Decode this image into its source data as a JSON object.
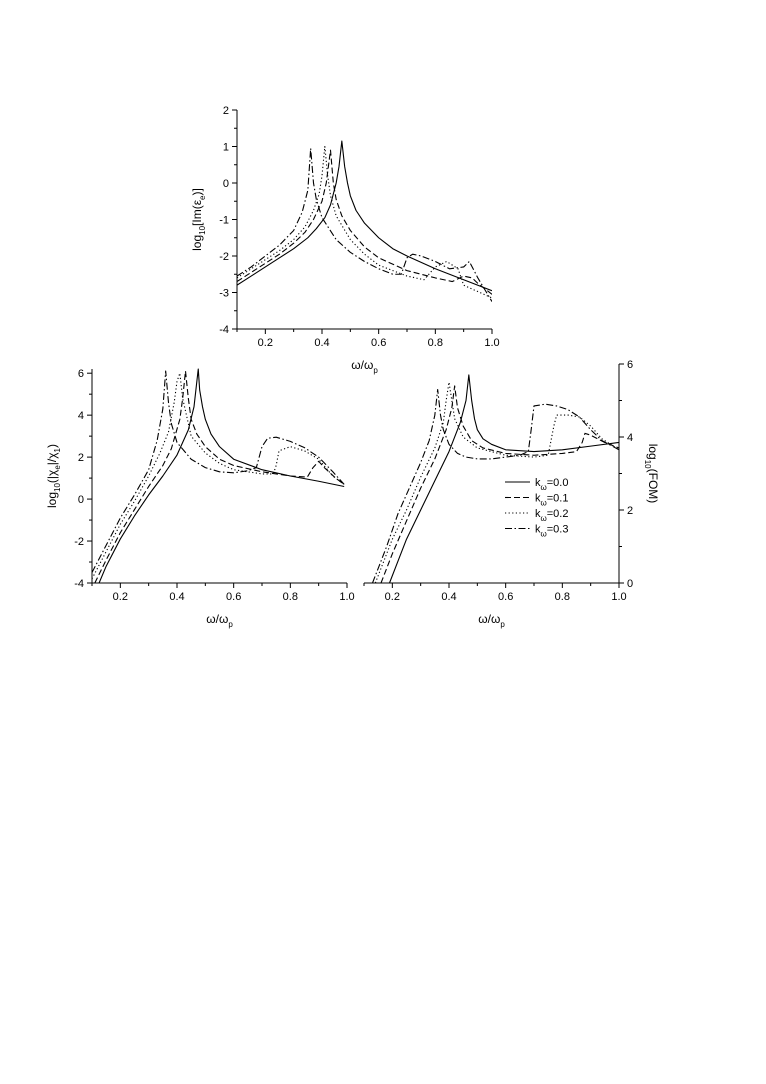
{
  "chart_data": [
    {
      "type": "line",
      "id": "top",
      "xlabel": "ω/ω",
      "xlabel_sub": "p",
      "ylabel_parts": [
        {
          "t": "log"
        },
        {
          "t": "10",
          "sub": true
        },
        {
          "t": "[Im(ε"
        },
        {
          "t": "e",
          "sub": true
        },
        {
          "t": ")]"
        }
      ],
      "xlim": [
        0.1,
        1.0
      ],
      "ylim": [
        -4,
        2
      ],
      "xticks": [
        0.2,
        0.4,
        0.6,
        0.8,
        1.0
      ],
      "xtick_labels": [
        "0.2",
        "0.4",
        "0.6",
        "0.8",
        "1.0"
      ],
      "yticks": [
        -4,
        -3,
        -2,
        -1,
        0,
        1,
        2
      ],
      "ytick_labels": [
        "-4",
        "-3",
        "-2",
        "-1",
        "0",
        "1",
        "2"
      ],
      "y_axis_side": "left",
      "series": [
        {
          "style": "solid",
          "x": [
            0.1,
            0.15,
            0.2,
            0.25,
            0.3,
            0.35,
            0.38,
            0.41,
            0.43,
            0.45,
            0.46,
            0.47,
            0.48,
            0.49,
            0.5,
            0.52,
            0.55,
            0.6,
            0.65,
            0.7,
            0.8,
            0.9,
            1.0
          ],
          "y": [
            -2.8,
            -2.55,
            -2.3,
            -2.05,
            -1.8,
            -1.5,
            -1.25,
            -0.95,
            -0.6,
            0.0,
            0.45,
            1.15,
            0.45,
            0.0,
            -0.35,
            -0.75,
            -1.1,
            -1.5,
            -1.8,
            -2.0,
            -2.35,
            -2.65,
            -2.95
          ]
        },
        {
          "style": "dash",
          "x": [
            0.1,
            0.15,
            0.2,
            0.25,
            0.3,
            0.34,
            0.37,
            0.4,
            0.415,
            0.43,
            0.44,
            0.45,
            0.47,
            0.5,
            0.55,
            0.6,
            0.7,
            0.8,
            0.86,
            0.9,
            0.93,
            0.95,
            1.0
          ],
          "y": [
            -2.7,
            -2.45,
            -2.2,
            -1.95,
            -1.65,
            -1.35,
            -1.0,
            -0.5,
            0.0,
            0.9,
            0.0,
            -0.45,
            -0.9,
            -1.3,
            -1.75,
            -2.05,
            -2.4,
            -2.6,
            -2.7,
            -2.55,
            -2.6,
            -2.75,
            -3.05
          ]
        },
        {
          "style": "dot",
          "x": [
            0.1,
            0.15,
            0.2,
            0.25,
            0.3,
            0.34,
            0.37,
            0.39,
            0.4,
            0.41,
            0.42,
            0.43,
            0.45,
            0.5,
            0.55,
            0.6,
            0.7,
            0.76,
            0.8,
            0.84,
            0.88,
            0.9,
            1.0
          ],
          "y": [
            -2.6,
            -2.35,
            -2.1,
            -1.85,
            -1.55,
            -1.2,
            -0.75,
            -0.3,
            0.2,
            1.0,
            0.2,
            -0.35,
            -0.9,
            -1.55,
            -1.95,
            -2.25,
            -2.55,
            -2.65,
            -2.3,
            -2.15,
            -2.35,
            -2.8,
            -3.15
          ]
        },
        {
          "style": "dashdot",
          "x": [
            0.1,
            0.15,
            0.2,
            0.25,
            0.3,
            0.33,
            0.35,
            0.36,
            0.37,
            0.38,
            0.4,
            0.45,
            0.5,
            0.55,
            0.6,
            0.65,
            0.68,
            0.7,
            0.72,
            0.75,
            0.8,
            0.85,
            0.9,
            0.92,
            0.95,
            1.0
          ],
          "y": [
            -2.55,
            -2.3,
            -2.0,
            -1.7,
            -1.3,
            -0.8,
            -0.2,
            0.95,
            0.0,
            -0.45,
            -0.95,
            -1.55,
            -1.9,
            -2.15,
            -2.35,
            -2.5,
            -2.5,
            -2.05,
            -1.95,
            -2.0,
            -2.15,
            -2.35,
            -2.3,
            -2.15,
            -2.6,
            -3.25
          ]
        }
      ]
    },
    {
      "type": "line",
      "id": "bottom-left",
      "xlabel": "ω/ω",
      "xlabel_sub": "p",
      "ylabel_parts": [
        {
          "t": "log"
        },
        {
          "t": "10",
          "sub": true
        },
        {
          "t": "(|χ"
        },
        {
          "t": "e",
          "sub": true
        },
        {
          "t": "|/χ"
        },
        {
          "t": "1",
          "sub": true
        },
        {
          "t": ")"
        }
      ],
      "xlim": [
        0.1,
        1.0
      ],
      "ylim": [
        -4,
        6.2
      ],
      "xticks": [
        0.2,
        0.4,
        0.6,
        0.8,
        1.0
      ],
      "xtick_labels": [
        "0.2",
        "0.4",
        "0.6",
        "0.8",
        "1.0"
      ],
      "yticks": [
        -4,
        -2,
        0,
        2,
        4,
        6
      ],
      "ytick_labels": [
        "-4",
        "-2",
        "0",
        "2",
        "4",
        "6"
      ],
      "y_axis_side": "left",
      "series": [
        {
          "style": "solid",
          "x": [
            0.125,
            0.15,
            0.2,
            0.25,
            0.3,
            0.35,
            0.4,
            0.44,
            0.46,
            0.47,
            0.475,
            0.48,
            0.49,
            0.5,
            0.52,
            0.55,
            0.6,
            0.7,
            0.8,
            0.9,
            0.99
          ],
          "y": [
            -4.0,
            -3.2,
            -1.9,
            -0.8,
            0.2,
            1.1,
            2.1,
            3.3,
            4.4,
            5.6,
            6.2,
            5.2,
            4.4,
            3.8,
            3.1,
            2.5,
            1.9,
            1.4,
            1.1,
            0.85,
            0.6
          ]
        },
        {
          "style": "dash",
          "x": [
            0.11,
            0.15,
            0.2,
            0.25,
            0.3,
            0.35,
            0.38,
            0.41,
            0.42,
            0.43,
            0.44,
            0.45,
            0.47,
            0.5,
            0.55,
            0.6,
            0.7,
            0.8,
            0.86,
            0.88,
            0.9,
            0.92,
            0.96,
            0.99
          ],
          "y": [
            -4.0,
            -2.9,
            -1.6,
            -0.5,
            0.6,
            1.6,
            2.4,
            3.8,
            4.8,
            6.1,
            4.8,
            3.8,
            3.1,
            2.5,
            1.9,
            1.6,
            1.3,
            1.1,
            1.05,
            1.5,
            1.8,
            1.5,
            1.0,
            0.7
          ]
        },
        {
          "style": "dot",
          "x": [
            0.1,
            0.15,
            0.2,
            0.25,
            0.3,
            0.34,
            0.37,
            0.39,
            0.4,
            0.41,
            0.42,
            0.45,
            0.5,
            0.55,
            0.6,
            0.7,
            0.74,
            0.75,
            0.76,
            0.8,
            0.85,
            0.9,
            0.95,
            0.99
          ],
          "y": [
            -3.8,
            -2.5,
            -1.2,
            -0.1,
            1.1,
            2.2,
            3.2,
            4.6,
            5.6,
            6.0,
            4.8,
            3.0,
            2.2,
            1.7,
            1.4,
            1.2,
            1.2,
            1.6,
            2.3,
            2.5,
            2.3,
            1.9,
            1.1,
            0.7
          ]
        },
        {
          "style": "dashdot",
          "x": [
            0.1,
            0.15,
            0.2,
            0.25,
            0.3,
            0.33,
            0.35,
            0.36,
            0.37,
            0.38,
            0.4,
            0.45,
            0.5,
            0.55,
            0.6,
            0.65,
            0.68,
            0.69,
            0.7,
            0.72,
            0.75,
            0.8,
            0.85,
            0.9,
            0.95,
            0.99
          ],
          "y": [
            -3.5,
            -2.2,
            -0.9,
            0.2,
            1.4,
            2.8,
            4.3,
            6.1,
            4.6,
            3.6,
            2.7,
            1.9,
            1.5,
            1.3,
            1.25,
            1.35,
            1.5,
            2.0,
            2.5,
            2.9,
            2.95,
            2.75,
            2.45,
            2.0,
            1.3,
            0.7
          ]
        }
      ]
    },
    {
      "type": "line",
      "id": "bottom-right",
      "xlabel": "ω/ω",
      "xlabel_sub": "p",
      "ylabel_parts": [
        {
          "t": "log"
        },
        {
          "t": "10",
          "sub": true
        },
        {
          "t": "(FOM)"
        }
      ],
      "xlim": [
        0.1,
        1.0
      ],
      "ylim": [
        0,
        6
      ],
      "xticks": [
        0.2,
        0.4,
        0.6,
        0.8,
        1.0
      ],
      "xtick_labels": [
        "0.2",
        "0.4",
        "0.6",
        "0.8",
        "1.0"
      ],
      "yticks": [
        0,
        2,
        4,
        6
      ],
      "ytick_labels": [
        "0",
        "2",
        "4",
        "6"
      ],
      "y_axis_side": "right",
      "legend_position": "middle-right",
      "legend": [
        {
          "style": "solid",
          "pre": "k",
          "sub": "ω",
          "post": "=0.0"
        },
        {
          "style": "dash",
          "pre": "k",
          "sub": "ω",
          "post": "=0.1"
        },
        {
          "style": "dot",
          "pre": "k",
          "sub": "ω",
          "post": "=0.2"
        },
        {
          "style": "dashdot",
          "pre": "k",
          "sub": "ω",
          "post": "=0.3"
        }
      ],
      "series": [
        {
          "style": "solid",
          "x": [
            0.19,
            0.22,
            0.25,
            0.3,
            0.35,
            0.4,
            0.44,
            0.46,
            0.47,
            0.48,
            0.49,
            0.5,
            0.52,
            0.55,
            0.6,
            0.7,
            0.8,
            0.9,
            1.0
          ],
          "y": [
            0.0,
            0.6,
            1.2,
            2.0,
            2.8,
            3.6,
            4.4,
            5.0,
            5.7,
            5.0,
            4.5,
            4.2,
            3.95,
            3.8,
            3.65,
            3.6,
            3.65,
            3.75,
            3.85
          ]
        },
        {
          "style": "dash",
          "x": [
            0.16,
            0.2,
            0.25,
            0.3,
            0.35,
            0.39,
            0.41,
            0.42,
            0.43,
            0.45,
            0.48,
            0.52,
            0.6,
            0.7,
            0.8,
            0.85,
            0.87,
            0.88,
            0.9,
            0.95,
            1.0
          ],
          "y": [
            0.0,
            0.8,
            1.7,
            2.6,
            3.4,
            4.2,
            4.8,
            5.4,
            4.8,
            4.3,
            3.9,
            3.7,
            3.55,
            3.5,
            3.55,
            3.6,
            3.85,
            4.1,
            4.05,
            3.85,
            3.7
          ]
        },
        {
          "style": "dot",
          "x": [
            0.14,
            0.2,
            0.25,
            0.3,
            0.35,
            0.38,
            0.39,
            0.4,
            0.41,
            0.42,
            0.45,
            0.5,
            0.6,
            0.7,
            0.75,
            0.76,
            0.77,
            0.78,
            0.82,
            0.86,
            0.9,
            0.94,
            1.0
          ],
          "y": [
            0.0,
            1.2,
            2.0,
            2.9,
            3.7,
            4.4,
            5.0,
            5.5,
            5.0,
            4.5,
            4.0,
            3.7,
            3.5,
            3.45,
            3.5,
            3.9,
            4.3,
            4.6,
            4.6,
            4.55,
            4.3,
            3.95,
            3.65
          ]
        },
        {
          "style": "dashdot",
          "x": [
            0.13,
            0.18,
            0.22,
            0.26,
            0.3,
            0.33,
            0.35,
            0.36,
            0.37,
            0.38,
            0.4,
            0.43,
            0.46,
            0.5,
            0.55,
            0.6,
            0.65,
            0.68,
            0.69,
            0.7,
            0.74,
            0.78,
            0.82,
            0.86,
            0.9,
            0.94,
            1.0
          ],
          "y": [
            0.0,
            1.0,
            1.9,
            2.6,
            3.3,
            3.9,
            4.6,
            5.3,
            4.6,
            4.2,
            3.8,
            3.55,
            3.45,
            3.4,
            3.4,
            3.45,
            3.5,
            3.6,
            4.2,
            4.85,
            4.9,
            4.85,
            4.75,
            4.55,
            4.2,
            3.9,
            3.65
          ]
        }
      ]
    }
  ]
}
